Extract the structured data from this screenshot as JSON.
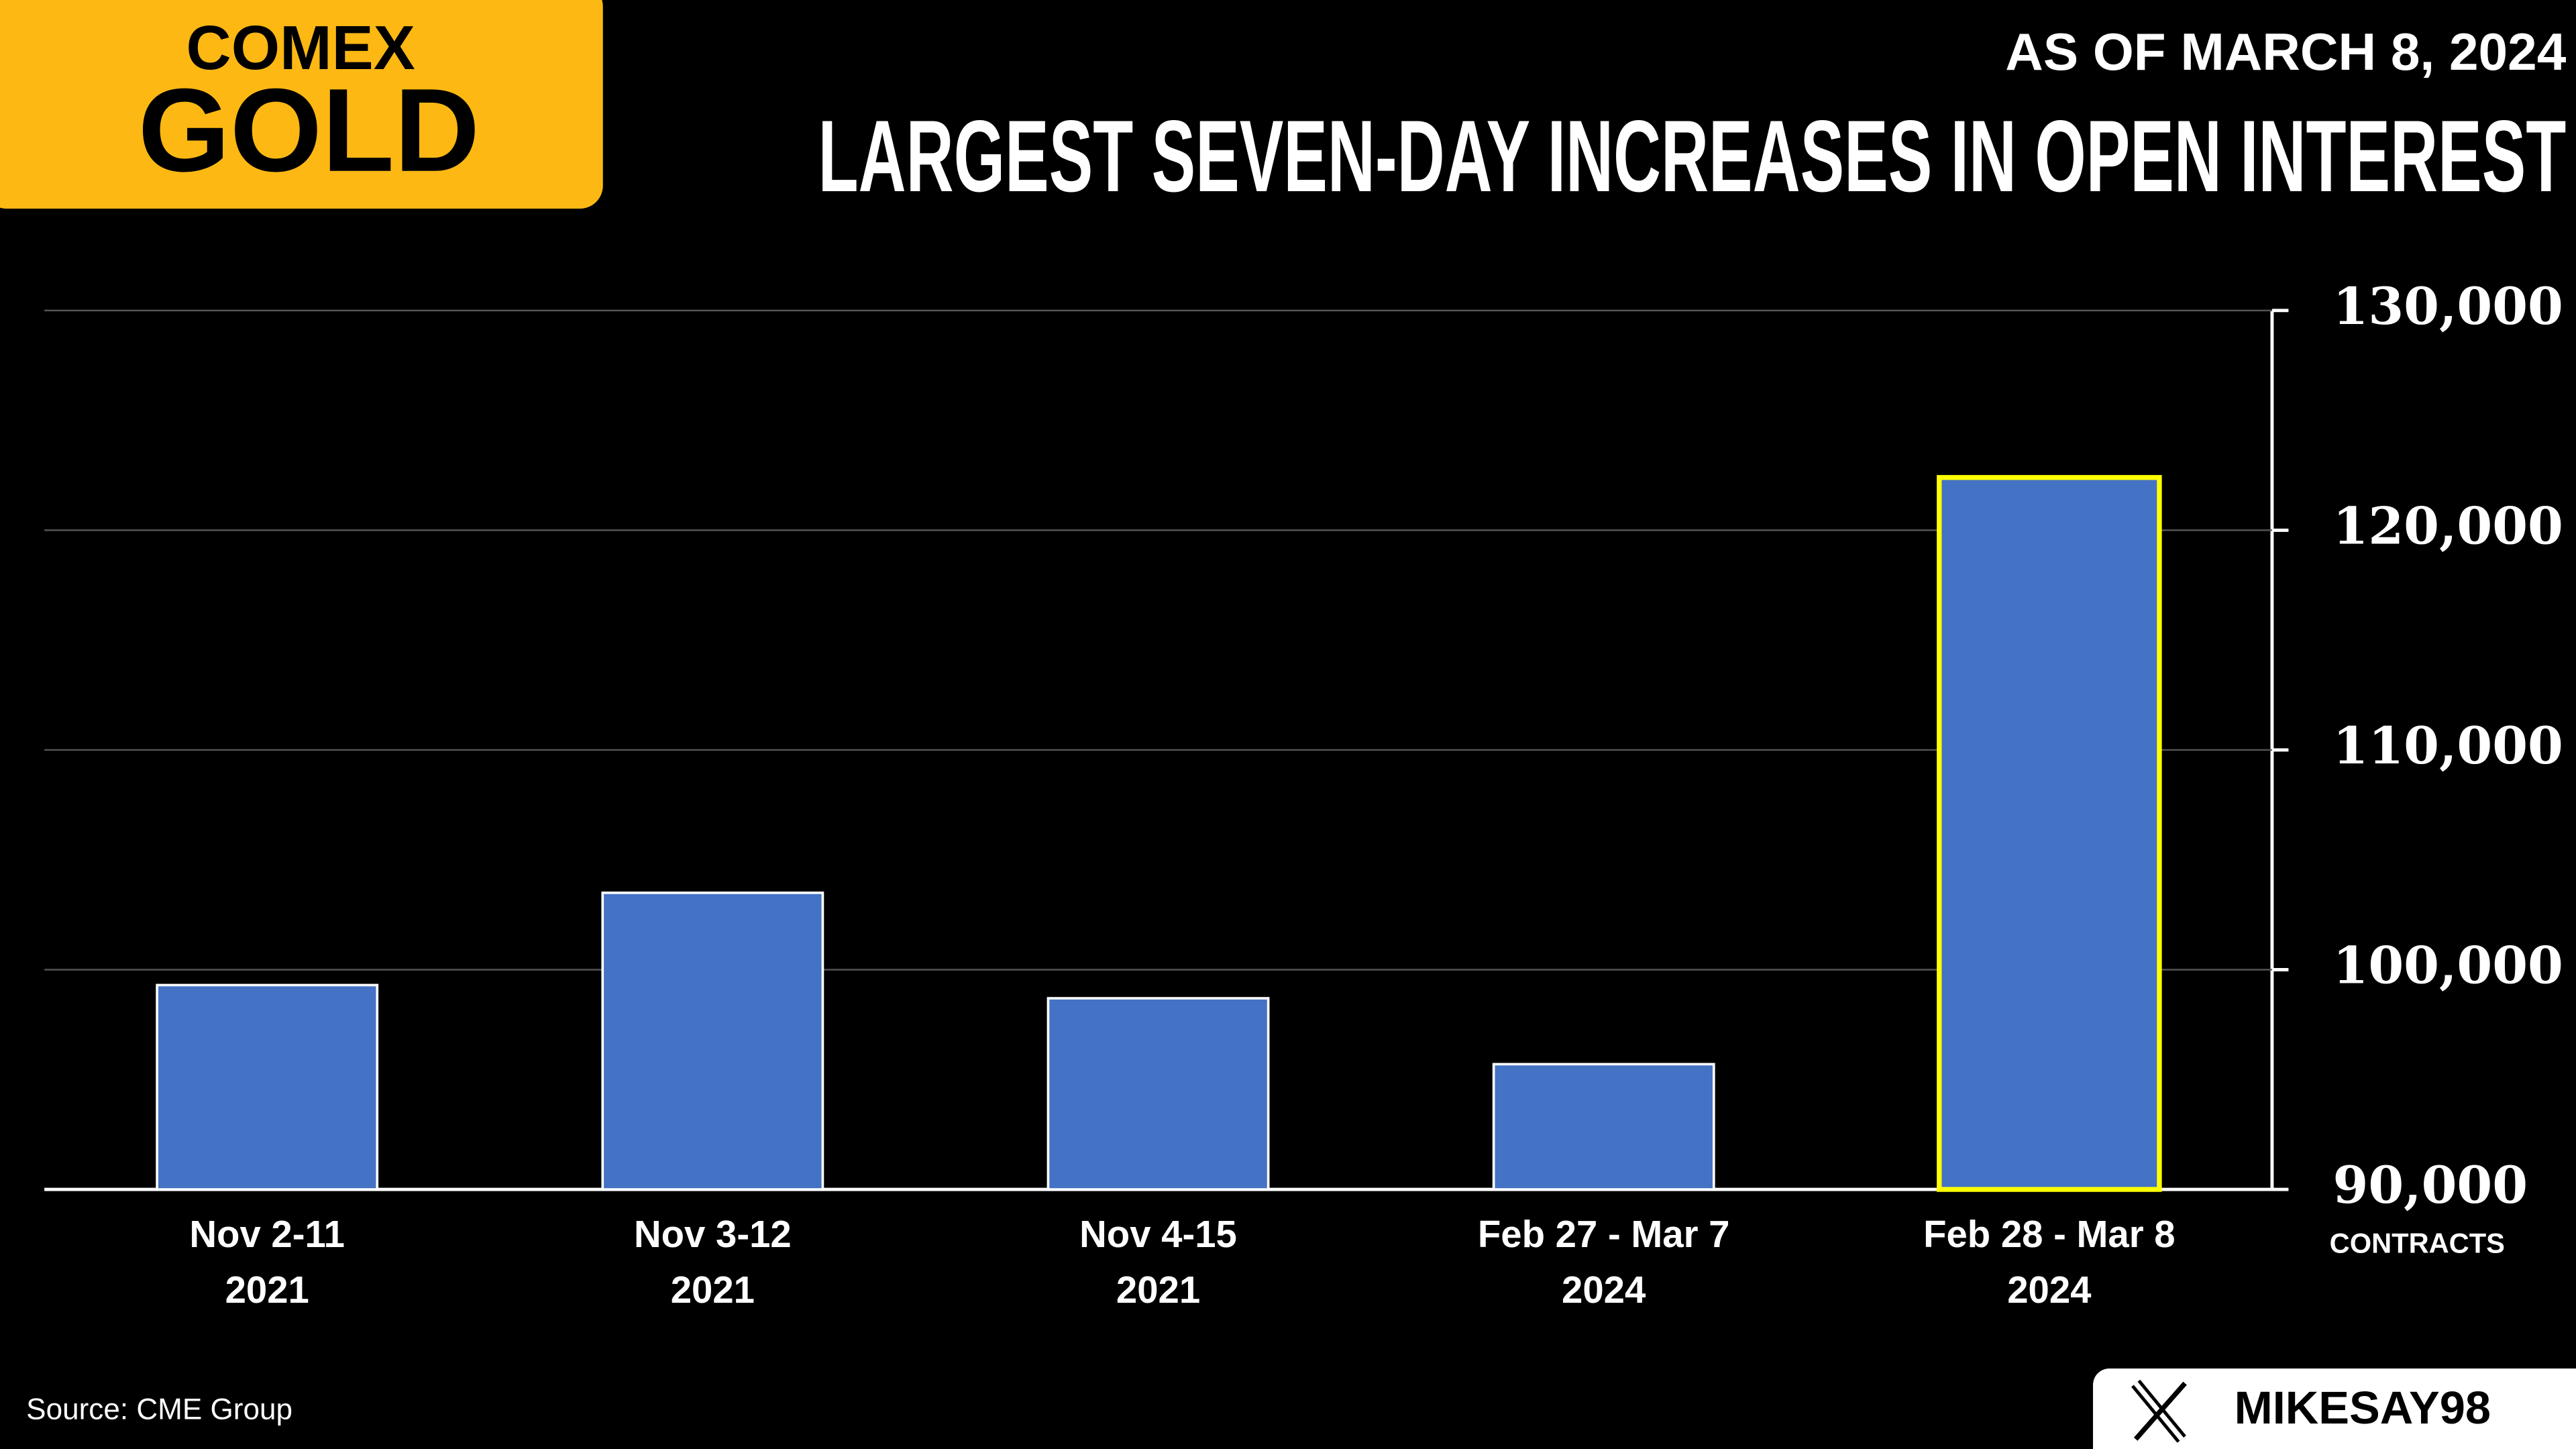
{
  "chart_data": {
    "type": "bar",
    "logo": [
      "COMEX",
      "GOLD"
    ],
    "subtitle": "AS OF MARCH 8, 2024",
    "title": "LARGEST SEVEN-DAY INCREASES IN OPEN INTEREST",
    "categories": [
      [
        "Nov 2-11",
        "2021"
      ],
      [
        "Nov 3-12",
        "2021"
      ],
      [
        "Nov 4-15",
        "2021"
      ],
      [
        "Feb 27 - Mar 7",
        "2024"
      ],
      [
        "Feb 28 - Mar 8",
        "2024"
      ]
    ],
    "values": [
      99300,
      103500,
      98700,
      95700,
      122400
    ],
    "color": "#4472c4",
    "edge_colors": [
      "#ffffff",
      "#ffffff",
      "#ffffff",
      "#ffffff",
      "#ffff00"
    ],
    "ylim": [
      90000,
      130000
    ],
    "yticks": [
      {
        "value": 90000,
        "label": "90,000"
      },
      {
        "value": 100000,
        "label": "100,000"
      },
      {
        "value": 110000,
        "label": "110,000"
      },
      {
        "value": 120000,
        "label": "120,000"
      },
      {
        "value": 130000,
        "label": "130,000"
      }
    ],
    "ylabel": "CONTRACTS",
    "grid": true,
    "source": "Source: CME Group",
    "handle": "MIKESAY98"
  }
}
